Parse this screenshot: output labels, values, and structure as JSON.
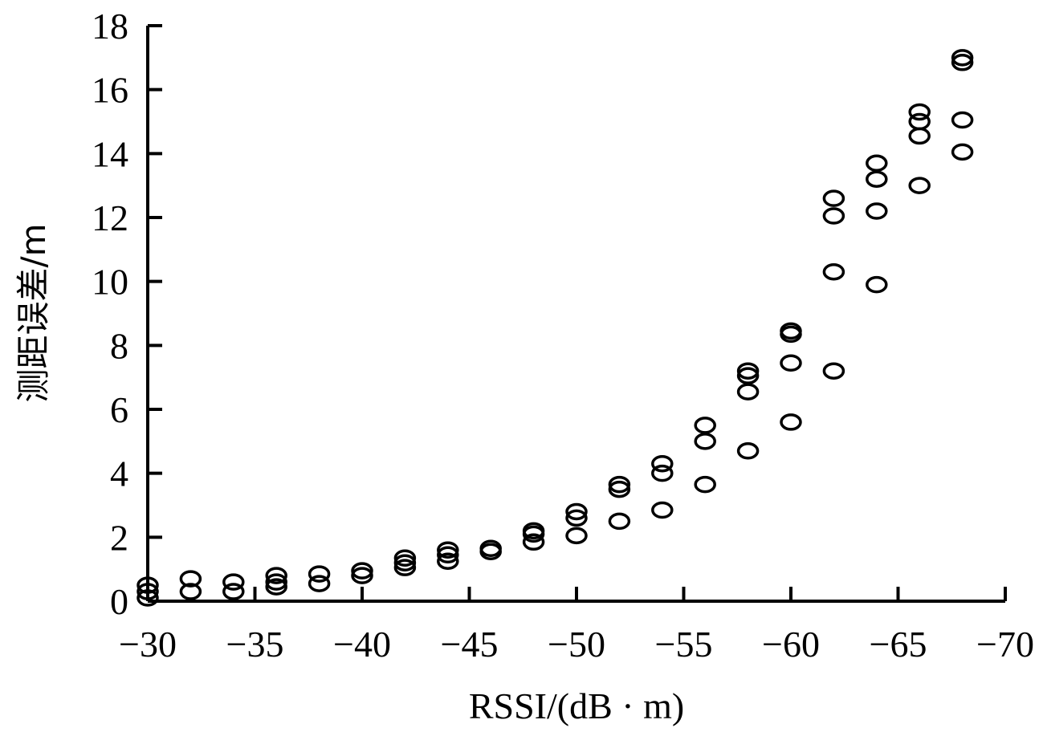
{
  "chart_data": {
    "type": "scatter",
    "title": "",
    "xlabel": "RSSI/(dB · m)",
    "ylabel": "测距误差/m",
    "xlim": [
      -30,
      -70
    ],
    "ylim": [
      0,
      18
    ],
    "x_reversed": true,
    "grid": false,
    "legend": null,
    "marker": "open-circle",
    "x_ticks": [
      -30,
      -35,
      -40,
      -45,
      -50,
      -55,
      -60,
      -65,
      -70
    ],
    "x_tick_labels": [
      "−30",
      "−35",
      "−40",
      "−45",
      "−50",
      "−55",
      "−60",
      "−65",
      "−70"
    ],
    "y_ticks": [
      0,
      2,
      4,
      6,
      8,
      10,
      12,
      14,
      16,
      18
    ],
    "y_tick_labels": [
      "0",
      "2",
      "4",
      "6",
      "8",
      "10",
      "12",
      "14",
      "16",
      "18"
    ],
    "points": [
      {
        "x": -30,
        "y": 0.5
      },
      {
        "x": -30,
        "y": 0.3
      },
      {
        "x": -30,
        "y": 0.1
      },
      {
        "x": -32,
        "y": 0.7
      },
      {
        "x": -32,
        "y": 0.3
      },
      {
        "x": -34,
        "y": 0.6
      },
      {
        "x": -34,
        "y": 0.3
      },
      {
        "x": -36,
        "y": 0.8
      },
      {
        "x": -36,
        "y": 0.6
      },
      {
        "x": -36,
        "y": 0.45
      },
      {
        "x": -38,
        "y": 0.85
      },
      {
        "x": -38,
        "y": 0.55
      },
      {
        "x": -40,
        "y": 0.95
      },
      {
        "x": -40,
        "y": 0.8
      },
      {
        "x": -42,
        "y": 1.35
      },
      {
        "x": -42,
        "y": 1.2
      },
      {
        "x": -42,
        "y": 1.05
      },
      {
        "x": -44,
        "y": 1.6
      },
      {
        "x": -44,
        "y": 1.45
      },
      {
        "x": -44,
        "y": 1.25
      },
      {
        "x": -46,
        "y": 1.65
      },
      {
        "x": -46,
        "y": 1.55
      },
      {
        "x": -48,
        "y": 2.2
      },
      {
        "x": -48,
        "y": 2.1
      },
      {
        "x": -48,
        "y": 1.85
      },
      {
        "x": -50,
        "y": 2.8
      },
      {
        "x": -50,
        "y": 2.6
      },
      {
        "x": -50,
        "y": 2.05
      },
      {
        "x": -52,
        "y": 3.65
      },
      {
        "x": -52,
        "y": 3.5
      },
      {
        "x": -52,
        "y": 2.5
      },
      {
        "x": -54,
        "y": 4.3
      },
      {
        "x": -54,
        "y": 4.0
      },
      {
        "x": -54,
        "y": 2.85
      },
      {
        "x": -56,
        "y": 5.5
      },
      {
        "x": -56,
        "y": 5.0
      },
      {
        "x": -56,
        "y": 3.65
      },
      {
        "x": -58,
        "y": 7.2
      },
      {
        "x": -58,
        "y": 7.05
      },
      {
        "x": -58,
        "y": 6.55
      },
      {
        "x": -58,
        "y": 4.7
      },
      {
        "x": -60,
        "y": 8.45
      },
      {
        "x": -60,
        "y": 8.35
      },
      {
        "x": -60,
        "y": 7.45
      },
      {
        "x": -60,
        "y": 5.6
      },
      {
        "x": -62,
        "y": 12.6
      },
      {
        "x": -62,
        "y": 12.05
      },
      {
        "x": -62,
        "y": 10.3
      },
      {
        "x": -62,
        "y": 7.2
      },
      {
        "x": -64,
        "y": 13.7
      },
      {
        "x": -64,
        "y": 13.2
      },
      {
        "x": -64,
        "y": 12.2
      },
      {
        "x": -64,
        "y": 9.9
      },
      {
        "x": -66,
        "y": 15.3
      },
      {
        "x": -66,
        "y": 15.0
      },
      {
        "x": -66,
        "y": 14.55
      },
      {
        "x": -66,
        "y": 13.0
      },
      {
        "x": -68,
        "y": 17.0
      },
      {
        "x": -68,
        "y": 16.85
      },
      {
        "x": -68,
        "y": 15.05
      },
      {
        "x": -68,
        "y": 14.05
      }
    ]
  },
  "style": {
    "axis_color": "#000000",
    "marker_color": "#000000",
    "background": "#ffffff"
  }
}
